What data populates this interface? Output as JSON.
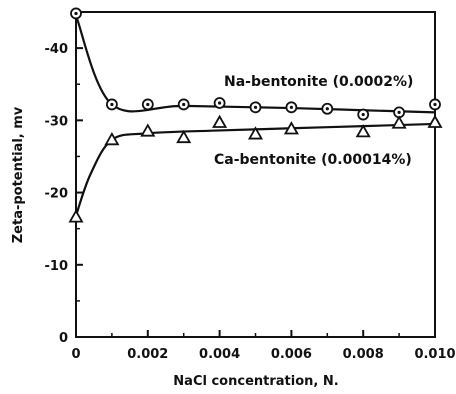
{
  "chart_data": {
    "type": "scatter",
    "title": "",
    "xlabel": "NaCl concentration, N.",
    "ylabel": "Zeta-potential, mv",
    "xlim": [
      0,
      0.01
    ],
    "ylim": [
      0,
      -45
    ],
    "x_ticks": [
      "0",
      "0.002",
      "0.004",
      "0.006",
      "0.008",
      "0.010"
    ],
    "y_ticks": [
      "0",
      "-10",
      "-20",
      "-30",
      "-40"
    ],
    "x_tick_values": [
      0,
      0.002,
      0.004,
      0.006,
      0.008,
      0.01
    ],
    "y_tick_values": [
      0,
      -10,
      -20,
      -30,
      -40
    ],
    "grid": false,
    "series": [
      {
        "name": "Na-bentonite (0.0002%)",
        "marker": "circle",
        "points": [
          {
            "x": 0.0,
            "y": -44.8
          },
          {
            "x": 0.001,
            "y": -32.2
          },
          {
            "x": 0.002,
            "y": -32.2
          },
          {
            "x": 0.003,
            "y": -32.2
          },
          {
            "x": 0.004,
            "y": -32.4
          },
          {
            "x": 0.005,
            "y": -31.8
          },
          {
            "x": 0.006,
            "y": -31.8
          },
          {
            "x": 0.007,
            "y": -31.6
          },
          {
            "x": 0.008,
            "y": -30.8
          },
          {
            "x": 0.009,
            "y": -31.1
          },
          {
            "x": 0.01,
            "y": -32.2
          }
        ],
        "curve": [
          {
            "x": 0.0,
            "y": -44.5
          },
          {
            "x": 0.001,
            "y": -32.2
          },
          {
            "x": 0.003,
            "y": -32.0
          },
          {
            "x": 0.006,
            "y": -31.7
          },
          {
            "x": 0.008,
            "y": -31.4
          },
          {
            "x": 0.01,
            "y": -31.1
          }
        ]
      },
      {
        "name": "Ca-bentonite (0.00014%)",
        "marker": "triangle",
        "points": [
          {
            "x": 0.0,
            "y": -16.6
          },
          {
            "x": 0.001,
            "y": -27.3
          },
          {
            "x": 0.002,
            "y": -28.5
          },
          {
            "x": 0.003,
            "y": -27.6
          },
          {
            "x": 0.004,
            "y": -29.7
          },
          {
            "x": 0.005,
            "y": -28.1
          },
          {
            "x": 0.006,
            "y": -28.8
          },
          {
            "x": 0.008,
            "y": -28.4
          },
          {
            "x": 0.009,
            "y": -29.6
          },
          {
            "x": 0.01,
            "y": -29.7
          }
        ],
        "curve": [
          {
            "x": 0.0,
            "y": -16.8
          },
          {
            "x": 0.0004,
            "y": -22.5
          },
          {
            "x": 0.001,
            "y": -27.3
          },
          {
            "x": 0.002,
            "y": -28.2
          },
          {
            "x": 0.004,
            "y": -28.6
          },
          {
            "x": 0.006,
            "y": -28.9
          },
          {
            "x": 0.008,
            "y": -29.2
          },
          {
            "x": 0.01,
            "y": -29.5
          }
        ]
      }
    ]
  }
}
